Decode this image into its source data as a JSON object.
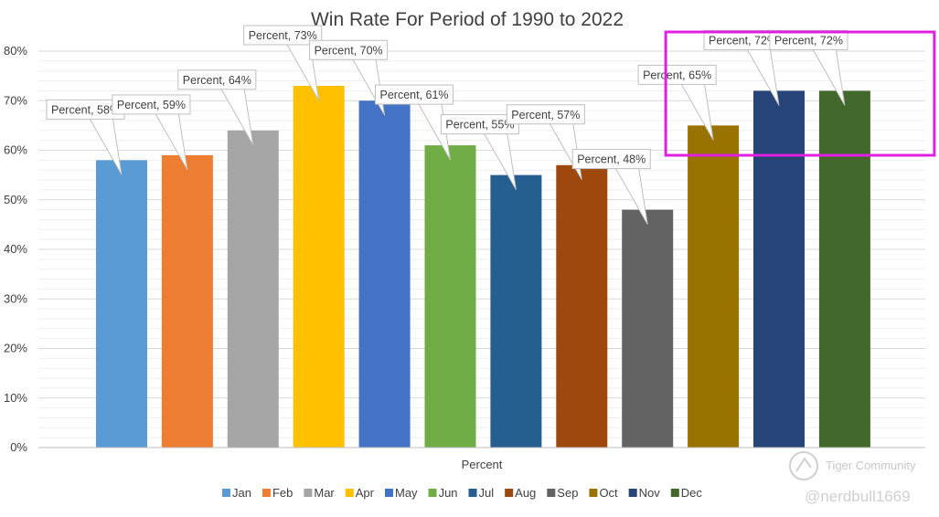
{
  "chart_data": {
    "type": "bar",
    "title": "Win Rate For Period of 1990 to 2022",
    "xlabel": "Percent",
    "ylabel": "",
    "ylim": [
      0,
      80
    ],
    "yticks": [
      "0%",
      "10%",
      "20%",
      "30%",
      "40%",
      "50%",
      "60%",
      "70%",
      "80%"
    ],
    "grid": true,
    "legend_position": "bottom",
    "series": [
      {
        "name": "Jan",
        "value": 58,
        "label": "Percent, 58%",
        "color": "#5b9bd5"
      },
      {
        "name": "Feb",
        "value": 59,
        "label": "Percent, 59%",
        "color": "#ed7d31"
      },
      {
        "name": "Mar",
        "value": 64,
        "label": "Percent, 64%",
        "color": "#a5a5a5"
      },
      {
        "name": "Apr",
        "value": 73,
        "label": "Percent, 73%",
        "color": "#ffc000"
      },
      {
        "name": "May",
        "value": 70,
        "label": "Percent, 70%",
        "color": "#4472c4"
      },
      {
        "name": "Jun",
        "value": 61,
        "label": "Percent, 61%",
        "color": "#70ad47"
      },
      {
        "name": "Jul",
        "value": 55,
        "label": "Percent, 55%",
        "color": "#255e91"
      },
      {
        "name": "Aug",
        "value": 57,
        "label": "Percent, 57%",
        "color": "#9e480e"
      },
      {
        "name": "Sep",
        "value": 48,
        "label": "Percent, 48%",
        "color": "#636363"
      },
      {
        "name": "Oct",
        "value": 65,
        "label": "Percent, 65%",
        "color": "#997300"
      },
      {
        "name": "Nov",
        "value": 72,
        "label": "Percent, 72%",
        "color": "#264478"
      },
      {
        "name": "Dec",
        "value": 72,
        "label": "Percent, 72%",
        "color": "#43682b"
      }
    ],
    "highlight": {
      "months": [
        "Oct",
        "Nov",
        "Dec"
      ],
      "color": "#e020e0"
    }
  },
  "watermark": {
    "brand": "Tiger Community",
    "handle": "@nerdbull1669"
  }
}
